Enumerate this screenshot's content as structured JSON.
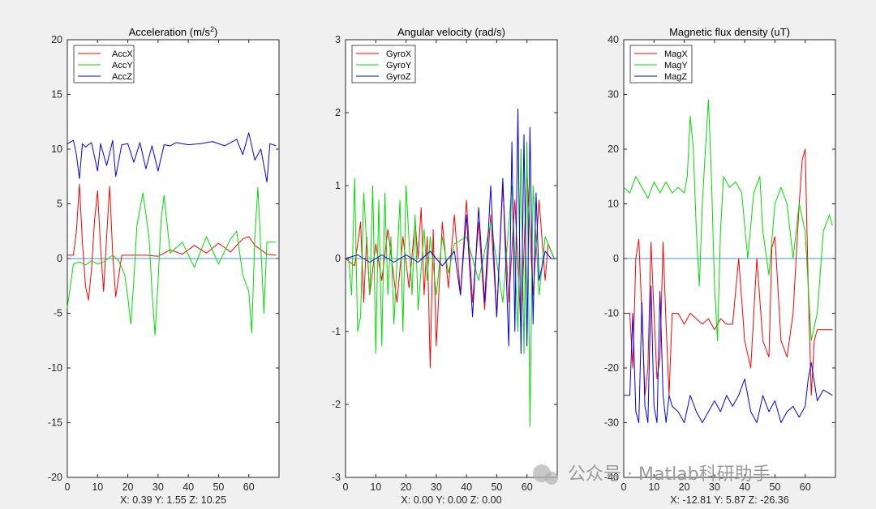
{
  "chart_data": [
    {
      "type": "line",
      "title_base": "Acceleration (m/s",
      "title_sup": "2",
      "title_end": ")",
      "xlim": [
        0,
        70
      ],
      "ylim": [
        -20,
        20
      ],
      "xticks": [
        0,
        10,
        20,
        30,
        40,
        50,
        60
      ],
      "yticks": [
        -20,
        -15,
        -10,
        -5,
        0,
        5,
        10,
        15,
        20
      ],
      "readout": "X: 0.39  Y: 1.55  Z: 10.25",
      "legend": [
        "AccX",
        "AccY",
        "AccZ"
      ],
      "series": [
        {
          "name": "AccX",
          "color": "#ff0000",
          "x": [
            0,
            2,
            3,
            4,
            5,
            6,
            7,
            8,
            9,
            10,
            11,
            12,
            13,
            14,
            15,
            16,
            18,
            22,
            26,
            30,
            34,
            38,
            42,
            46,
            50,
            54,
            58,
            60,
            62,
            64,
            66,
            69
          ],
          "y": [
            0.3,
            0.3,
            2.5,
            6.8,
            1.5,
            -2.5,
            -3.8,
            -1.0,
            3.5,
            6.2,
            1.0,
            -3.0,
            2.0,
            6.6,
            0.5,
            -3.5,
            0.3,
            0.3,
            0.3,
            0.2,
            0.8,
            0.4,
            1.2,
            0.5,
            1.4,
            0.6,
            1.8,
            2.0,
            1.2,
            0.8,
            0.4,
            0.3
          ]
        },
        {
          "name": "AccY",
          "color": "#00dd00",
          "x": [
            0,
            2,
            4,
            6,
            8,
            10,
            12,
            15,
            17,
            19,
            20,
            21,
            22,
            23,
            25,
            27,
            28,
            29,
            30,
            31,
            32,
            34,
            38,
            42,
            46,
            50,
            54,
            56,
            58,
            60,
            61,
            62,
            63,
            64,
            65,
            66,
            69
          ],
          "y": [
            -4.5,
            -0.5,
            -0.3,
            -0.6,
            -0.2,
            -0.5,
            -0.3,
            0.3,
            -0.2,
            -1.5,
            -3.5,
            -6.0,
            -2.0,
            3.0,
            6.0,
            2.0,
            -3.0,
            -7.0,
            -2.0,
            3.5,
            5.8,
            0.5,
            1.5,
            -0.8,
            2.0,
            -0.5,
            1.8,
            2.5,
            -1.5,
            -3.0,
            -6.8,
            2.0,
            6.5,
            1.0,
            -5.0,
            1.5,
            1.5
          ]
        },
        {
          "name": "AccZ",
          "color": "#0000ee",
          "x": [
            0,
            2,
            3,
            4,
            5,
            6,
            8,
            10,
            11,
            13,
            15,
            16,
            18,
            20,
            22,
            24,
            26,
            28,
            30,
            32,
            34,
            36,
            40,
            44,
            48,
            52,
            56,
            58,
            60,
            62,
            64,
            66,
            67,
            69
          ],
          "y": [
            10.5,
            10.8,
            9.5,
            7.3,
            10.5,
            10.2,
            10.6,
            8.0,
            10.5,
            8.5,
            10.8,
            7.5,
            10.4,
            10.5,
            8.8,
            10.6,
            8.2,
            10.3,
            8.0,
            10.4,
            10.3,
            10.6,
            10.4,
            10.5,
            10.7,
            10.3,
            10.9,
            9.5,
            11.5,
            9.0,
            10.0,
            7.0,
            10.5,
            10.3
          ]
        }
      ]
    },
    {
      "type": "line",
      "title_base": "Angular velocity (rad/s)",
      "title_sup": "",
      "title_end": "",
      "xlim": [
        0,
        70
      ],
      "ylim": [
        -3,
        3
      ],
      "xticks": [
        0,
        10,
        20,
        30,
        40,
        50,
        60
      ],
      "yticks": [
        -3,
        -2,
        -1,
        0,
        1,
        2,
        3
      ],
      "readout": "X: 0.00  Y: 0.00  Z: 0.00",
      "legend": [
        "GyroX",
        "GyroY",
        "GyroZ"
      ],
      "series": [
        {
          "name": "GyroX",
          "color": "#ff0000",
          "x": [
            0,
            3,
            5,
            6,
            7,
            8,
            10,
            12,
            14,
            17,
            19,
            21,
            23,
            24,
            25,
            26,
            27,
            28,
            29,
            30,
            32,
            34,
            36,
            38,
            40,
            42,
            44,
            46,
            48,
            50,
            52,
            54,
            56,
            58,
            60,
            62,
            64,
            66,
            67,
            69
          ],
          "y": [
            0.0,
            -0.1,
            0.5,
            -0.6,
            0.3,
            -0.5,
            0.2,
            -0.3,
            0.4,
            -0.6,
            0.3,
            -0.4,
            0.5,
            0.0,
            0.7,
            -0.5,
            0.3,
            -1.5,
            0.4,
            -1.2,
            0.5,
            -0.4,
            0.6,
            -0.5,
            0.8,
            -0.6,
            0.5,
            -0.7,
            0.6,
            -0.8,
            1.0,
            -0.6,
            0.8,
            -1.0,
            1.2,
            -0.5,
            0.8,
            -0.3,
            0.2,
            0.0
          ]
        },
        {
          "name": "GyroY",
          "color": "#00dd00",
          "x": [
            0,
            1,
            2,
            3,
            4,
            5,
            6,
            8,
            9,
            10,
            11,
            12,
            13,
            14,
            15,
            16,
            18,
            19,
            20,
            22,
            23,
            24,
            26,
            27,
            28,
            30,
            32,
            34,
            36,
            40,
            44,
            48,
            52,
            55,
            57,
            58,
            59,
            60,
            61,
            62,
            64,
            66,
            69
          ],
          "y": [
            0.0,
            0.0,
            -0.5,
            1.1,
            -1.0,
            -0.8,
            0.9,
            -0.5,
            1.0,
            -1.3,
            0.8,
            -1.2,
            0.9,
            -0.5,
            0.3,
            -0.9,
            0.8,
            -1.0,
            1.0,
            -0.5,
            0.6,
            -0.7,
            0.4,
            -0.3,
            0.3,
            -0.5,
            0.3,
            -0.2,
            0.2,
            0.3,
            -0.3,
            0.5,
            -0.6,
            1.0,
            -1.0,
            1.5,
            -1.3,
            1.6,
            -2.3,
            1.0,
            -0.5,
            0.3,
            0.0
          ]
        },
        {
          "name": "GyroZ",
          "color": "#0000ee",
          "x": [
            0,
            4,
            8,
            12,
            16,
            20,
            24,
            28,
            32,
            36,
            38,
            40,
            42,
            44,
            46,
            48,
            50,
            52,
            54,
            55,
            56,
            57,
            58,
            59,
            60,
            61,
            62,
            63,
            64,
            66,
            68,
            69
          ],
          "y": [
            0.0,
            0.05,
            -0.05,
            0.05,
            -0.05,
            0.05,
            -0.05,
            0.1,
            -0.1,
            0.1,
            -0.5,
            0.6,
            -0.8,
            0.7,
            -0.6,
            1.0,
            -0.8,
            1.1,
            -1.2,
            1.6,
            -1.0,
            2.05,
            -1.3,
            1.7,
            -1.2,
            1.8,
            -0.9,
            0.9,
            -0.3,
            0.1,
            0.0,
            0.0
          ]
        }
      ]
    },
    {
      "type": "line",
      "title_base": "Magnetic flux density (uT)",
      "title_sup": "",
      "title_end": "",
      "xlim": [
        0,
        70
      ],
      "ylim": [
        -40,
        40
      ],
      "xticks": [
        0,
        10,
        20,
        30,
        40,
        50,
        60
      ],
      "yticks": [
        -40,
        -30,
        -20,
        -10,
        0,
        10,
        20,
        30,
        40
      ],
      "readout": "X: -12.81  Y: 5.87  Z: -26.36",
      "legend": [
        "MagX",
        "MagY",
        "MagZ"
      ],
      "series": [
        {
          "name": "MagX",
          "color": "#ff0000",
          "x": [
            0,
            2,
            3,
            4,
            5,
            6,
            7,
            8,
            9,
            10,
            11,
            12,
            13,
            14,
            15,
            16,
            18,
            20,
            22,
            24,
            26,
            28,
            30,
            32,
            34,
            36,
            38,
            40,
            42,
            44,
            46,
            48,
            49,
            50,
            52,
            54,
            56,
            57,
            58,
            59,
            60,
            61,
            62,
            63,
            64,
            66,
            69
          ],
          "y": [
            -10,
            -10,
            -20,
            0,
            3.5,
            -10,
            -25,
            -20,
            3.0,
            -10,
            -22,
            -18,
            3.0,
            -12,
            -25,
            -10,
            -10,
            -12,
            -10,
            -11,
            -12,
            -11,
            -13,
            -11,
            -12,
            -12,
            0,
            -15,
            -20,
            0,
            -15,
            -18,
            2.0,
            4.0,
            -15,
            -18,
            -10,
            0,
            10,
            18,
            20,
            -5,
            -25,
            -15,
            -13,
            -13,
            -13
          ]
        },
        {
          "name": "MagY",
          "color": "#00dd00",
          "x": [
            0,
            2,
            4,
            6,
            8,
            10,
            12,
            14,
            16,
            18,
            20,
            21,
            22,
            23,
            24,
            25,
            26,
            27,
            28,
            29,
            30,
            31,
            32,
            33,
            35,
            37,
            39,
            41,
            43,
            45,
            46,
            48,
            50,
            52,
            54,
            56,
            58,
            60,
            61,
            62,
            64,
            66,
            68,
            69
          ],
          "y": [
            13,
            12,
            15,
            13,
            11,
            14,
            12,
            14,
            12,
            13,
            12,
            15,
            26,
            20,
            5,
            -5,
            10,
            20,
            29,
            15,
            -5,
            -15,
            5,
            15,
            13,
            14,
            12,
            0,
            12,
            15,
            5,
            -3,
            10,
            13,
            10,
            0,
            10,
            5,
            -5,
            -15,
            -10,
            5,
            8,
            6
          ]
        },
        {
          "name": "MagZ",
          "color": "#0000ee",
          "x": [
            0,
            2,
            3,
            4,
            5,
            6,
            7,
            8,
            9,
            10,
            11,
            12,
            13,
            14,
            15,
            16,
            18,
            20,
            22,
            24,
            26,
            28,
            30,
            32,
            34,
            36,
            38,
            40,
            42,
            44,
            46,
            48,
            50,
            52,
            54,
            56,
            58,
            60,
            61,
            62,
            64,
            66,
            69
          ],
          "y": [
            -25,
            -25,
            -10,
            -28,
            -30,
            -8,
            -27,
            -30,
            -5,
            -27,
            -30,
            -6,
            -25,
            -30,
            -25,
            -27,
            -28,
            -30,
            -25,
            -28,
            -30,
            -28,
            -26,
            -28,
            -25,
            -27,
            -25,
            -22,
            -28,
            -30,
            -25,
            -28,
            -26,
            -30,
            -28,
            -27,
            -29,
            -27,
            -22,
            -19,
            -26,
            -24,
            -25
          ]
        }
      ]
    }
  ],
  "watermark": "公众号 · Matlab科研助手"
}
